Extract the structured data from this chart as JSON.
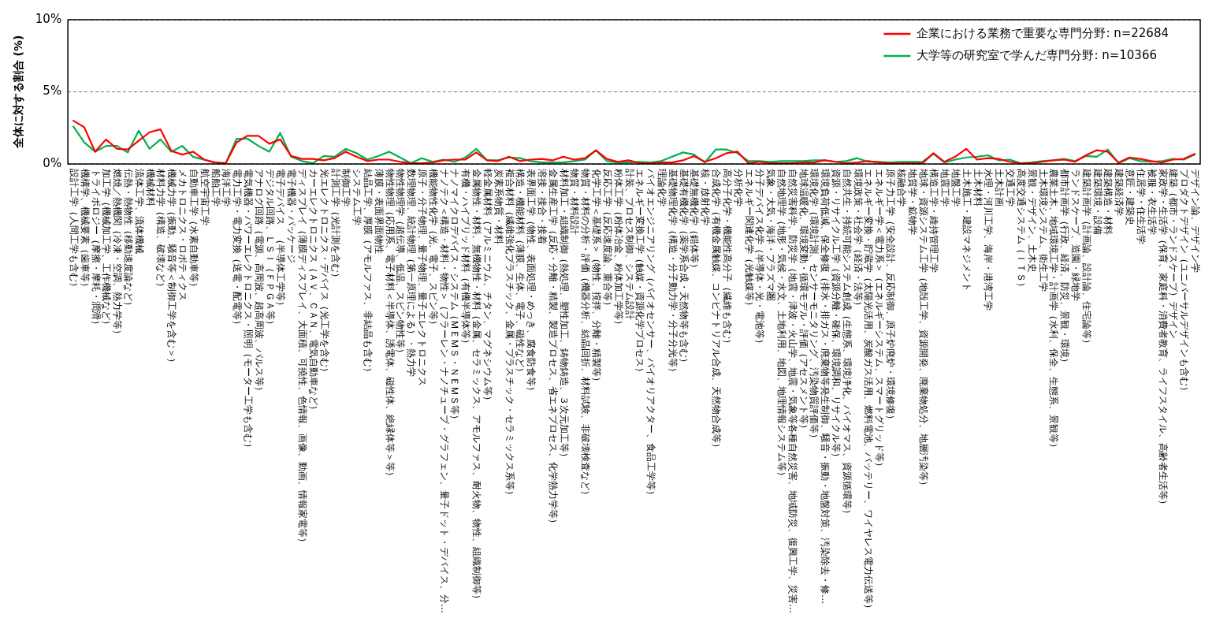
{
  "chart_data": {
    "type": "line",
    "ylabel": "全体に対する割合 (%)",
    "categories": [
      "設計工学（人間工学も含む）",
      "機構学、機械要素（歯車等）",
      "トライボロジー（摩擦・摩耗・潤滑）",
      "加工学（機械加工学、工作機械など）",
      "燃焼／熱機関（冷凍・空調、熱力学等）",
      "伝熱・熱物性（移動速度論など）",
      "流体工学、流体機械",
      "機械材料",
      "材料力学（構造、破壊など）",
      "機械力学（振動、騒音等＜制御工学を含む＞）",
      "メカトロニクス・ロボティクス",
      "自動車工学（水素自動車等）",
      "航空宇宙工学",
      "船舶工学",
      "海洋工学",
      "電力工学・電力変換（送電・配電等）",
      "電気機器・パワーエレクトロニクス・照明（モーター工学も含む）",
      "アナログ回路（電源、高周波、超高周波、パルス等）",
      "デジタル回路、ＬＳＩ（ＦＰＧＡ等）",
      "電子デバイス　（半導体工学等）",
      "電子機器・パッケージ",
      "ディスプレイ（薄膜ディスプレイ、大面積、可撓性、色情報、画像、動画、情報家電等）",
      "カーエレクトロニクス（ＡＶ、ＣＡＮ、電気自動車など）",
      "光エレクトロニクス・デバイス（光工学を含む）",
      "計測工学（光計測を含む）",
      "制御工学",
      "システム工学",
      "結晶工学、厚膜（アモルファス、非結晶も含む）",
      "薄膜・表面界面物性",
      "物性物理（応用系、電子材料＜半導体、誘電体、磁性体、絶縁体等＞等）",
      "物性物理学（超伝導、低温、スピン物性等）",
      "数理物理、統計物理（第一原理による）・熱力学",
      "原子・分子物理、量子物理、量子エレクトロニクス",
      "機能物性化学（光、電子、スピン等）",
      "ナノテク＜構造・材料・物性＞（フラーレン・ナノチューブ・グラフェン、量子ドット・デバイス、分…",
      "ナノマイクロデバイス・システム（ＭＥＭＳ・ＮＥＭＳ等）",
      "有機・ハイブリッド材料（有機半導体等）",
      "金属物性・材料、無機物性・材料（金属、セラミックス、アモルファス、耐火物、物性、組織制御等）",
      "軽金属材料（アルミニウム、チタン、マグネシウム等）",
      "炭素系物質・材料",
      "複合材料（繊維強化プラスチック、金属・プラスチック・セラミックス系等）",
      "構造・機能材料（薄膜、生体、電子、磁性など）",
      "表界面工学（物性、表面処理・めっき、腐食防食等）",
      "溶接・接合・接着",
      "金属生産工学（反応・分離・精製、製造プロセス、省エネプロセス、化学熱力学等）",
      "材料加工・組織制御（熱処理、塑性加工、鋳物鋳造、３次元加工等）",
      "物質・材料設計",
      "物質・材料の分析・評価（機器分析、結晶回折、材料試験、非破壊検査など）",
      "化学工学＜基礎系＞（物性、撹拌、分離・精製等）",
      "反応工学（反応速度論、重合等）",
      "粉体工学（粉体冶金、粉体加工学等）",
      "計装、プロセス制御、システム設計",
      "エネルギー変換工学（触媒・資源化学プロセス）",
      "バイオエンジニアリング（バイオセンサー、バイオリアクター、食品工学等）",
      "理論化学",
      "基礎物理化学（構造・分子動力学・分子分光等）",
      "基礎有機化学（薬学系合成・天然物等も含む）",
      "基礎無機化学（錯体等）",
      "核・放射化学",
      "合成化学（有機金属触媒、コンビナトリアル合成、天然物合成等）",
      "高分子化学・機能性高分子（繊維も含む）",
      "分析化学",
      "エネルギー関連化学（光触媒等）",
      "分子デバイス化学（半導体・光・電池等）",
      "気象・大気・海洋・プラズマ圏",
      "自然地理学（地形・気候・水文、土地利用、地図、地理情報システム等）",
      "自然災害科学、防災学（地震・津波・火山学、地震・気象等各種自然災害、地域防災、復興工学、災害…",
      "地球温暖化、環境変動・循環モデル・評価（アセスメント等）",
      "環境化学（環境計測、センサーモニタリング、汚染物質評価等）",
      "環境負荷低減、保全修復（排水・排ガス・廃棄物等発生制御、騒音・振動・地盤対策、汚染除去・修…",
      "資源・リサイクル工学（資源分離・確保、環境調和、リサイクル等）",
      "自然共生・持続可能システム創成（生態系、環境浄化、バイオマス、資源循環等）",
      "環境政策・社会学（経済・法等）",
      "エネルギー変換・貯蔵学（太陽光活用、炭酸ガス活用、燃料電池、バッテリー、ワイヤレス電力伝送等）",
      "エネルギー学＜電力系＞（エネルギーシステム、スマートグリッド等）",
      "原子力工学（安全設計、反応制御、原子炉廃炉・環境修復）",
      "核融合学",
      "地質学・鉱物学",
      "地球・資源システム工学（地殻工学、資源開発、廃棄物処分、地層汚染等）",
      "構造工学・維持管理工学",
      "地震工学",
      "地盤工学",
      "土木施工・建設マネジメント",
      "土木材料",
      "水理・河川工学、海岸・港湾工学",
      "土木計画",
      "交通工学",
      "高度交通システム（ＩＴＳ）",
      "景観・デザイン、土木史",
      "土木環境システム、衛生工学",
      "農業土木、地域環境工学・計画学（水利、保全、生態系、景観等）",
      "都市計画学（行政、経済、防災、景観・環境）",
      "ランドスケープ、造園・緑地学",
      "建築計画学（計画論、設計論、住宅論等）",
      "建築環境・設備",
      "建築構造・材料",
      "建築経済学",
      "意匠・建築史",
      "住居学・住生活学",
      "被服・衣生活学",
      "家政学・生活学（保育、家庭科・消費者教育、ライフスタイル、高齢者生活等）",
      "建築（都市・ランドスケープ）デザイン",
      "プロダクトデザイン（ユニバーサルデザインも含む）",
      "デザイン論、デザイン学"
    ],
    "series": [
      {
        "name": "企業における業務で重要な専門分野: n=22684",
        "color": "#ff0000",
        "values": [
          3.0,
          2.55,
          0.85,
          1.7,
          1.05,
          1.0,
          1.6,
          2.2,
          2.4,
          0.9,
          0.65,
          0.85,
          0.3,
          0.1,
          0.05,
          1.5,
          1.95,
          1.95,
          1.4,
          1.7,
          0.55,
          0.35,
          0.35,
          0.25,
          0.4,
          0.85,
          0.5,
          0.2,
          0.3,
          0.3,
          0.15,
          0.05,
          0.05,
          0.1,
          0.25,
          0.3,
          0.3,
          0.8,
          0.25,
          0.2,
          0.5,
          0.2,
          0.3,
          0.35,
          0.25,
          0.5,
          0.3,
          0.4,
          0.95,
          0.35,
          0.15,
          0.25,
          0.05,
          0.05,
          0.1,
          0.1,
          0.25,
          0.55,
          0.15,
          0.4,
          0.75,
          0.85,
          0.05,
          0.15,
          0.05,
          0.05,
          0.05,
          0.1,
          0.1,
          0.25,
          0.15,
          0.05,
          0.1,
          0.2,
          0.1,
          0.05,
          0.05,
          0.05,
          0.05,
          0.75,
          0.15,
          0.5,
          1.05,
          0.3,
          0.4,
          0.35,
          0.15,
          0.05,
          0.05,
          0.15,
          0.25,
          0.3,
          0.15,
          0.6,
          0.95,
          0.85,
          0.1,
          0.45,
          0.35,
          0.2,
          0.1,
          0.3,
          0.35,
          0.7
        ]
      },
      {
        "name": "大学等の研究室で学んだ専門分野: n=10366",
        "color": "#00b050",
        "values": [
          2.6,
          1.5,
          0.85,
          1.25,
          1.25,
          0.8,
          2.3,
          1.05,
          1.7,
          0.85,
          1.25,
          0.5,
          0.3,
          0.1,
          0.05,
          1.75,
          1.75,
          1.25,
          0.85,
          2.15,
          0.5,
          0.2,
          0.05,
          0.55,
          0.5,
          1.05,
          0.75,
          0.3,
          0.55,
          0.85,
          0.45,
          0.05,
          0.4,
          0.15,
          0.3,
          0.15,
          0.45,
          1.05,
          0.25,
          0.25,
          0.45,
          0.4,
          0.2,
          0.1,
          0.1,
          0.1,
          0.2,
          0.3,
          0.95,
          0.2,
          0.1,
          0.1,
          0.15,
          0.1,
          0.2,
          0.5,
          0.8,
          0.65,
          0.1,
          1.0,
          1.0,
          0.75,
          0.2,
          0.2,
          0.15,
          0.2,
          0.2,
          0.2,
          0.25,
          0.25,
          0.15,
          0.2,
          0.4,
          0.15,
          0.15,
          0.1,
          0.15,
          0.15,
          0.15,
          0.7,
          0.1,
          0.3,
          0.45,
          0.5,
          0.6,
          0.25,
          0.3,
          0.05,
          0.1,
          0.2,
          0.25,
          0.35,
          0.2,
          0.55,
          0.5,
          1.0,
          0.05,
          0.4,
          0.2,
          0.15,
          0.2,
          0.35,
          0.3,
          0.65
        ]
      }
    ],
    "ylim": [
      0,
      10
    ],
    "yticks": [
      {
        "value": 0,
        "label": "0%"
      },
      {
        "value": 5,
        "label": "5%"
      },
      {
        "value": 10,
        "label": "10%"
      }
    ],
    "grid": "y",
    "legend": "top right"
  }
}
